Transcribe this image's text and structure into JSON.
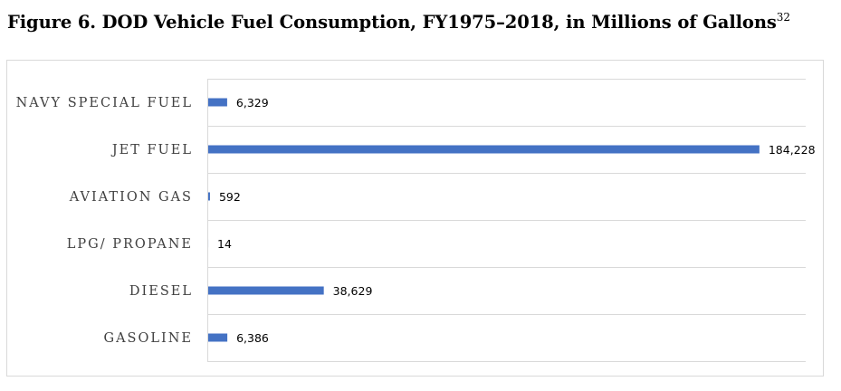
{
  "figure": {
    "title": "Figure 6. DOD Vehicle Fuel Consumption, FY1975–2018, in Millions of Gallons",
    "footnote_ref": "32"
  },
  "chart_data": {
    "type": "bar",
    "orientation": "horizontal",
    "categories": [
      "NAVY SPECIAL FUEL",
      "JET FUEL",
      "AVIATION GAS",
      "LPG/ PROPANE",
      "DIESEL",
      "GASOLINE"
    ],
    "values": [
      6329,
      184228,
      592,
      14,
      38629,
      6386
    ],
    "value_labels": [
      "6,329",
      "184,228",
      "592",
      "14",
      "38,629",
      "6,386"
    ],
    "bar_color": "#4472C4",
    "grid": true,
    "xlim": [
      0,
      200000
    ]
  }
}
